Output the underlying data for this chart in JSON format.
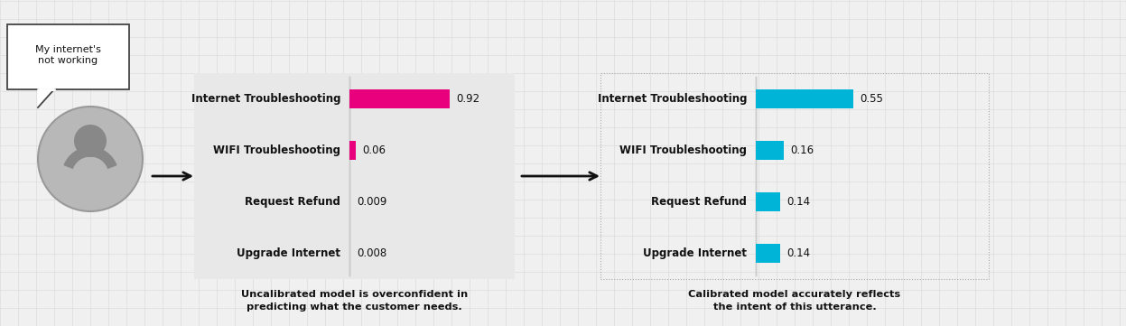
{
  "background_color": "#f0f0f0",
  "grid_color": "#d8d8d8",
  "categories": [
    "Internet Troubleshooting",
    "WIFI Troubleshooting",
    "Request Refund",
    "Upgrade Internet"
  ],
  "uncalibrated_values": [
    0.92,
    0.06,
    0.009,
    0.008
  ],
  "uncalibrated_labels": [
    "0.92",
    "0.06",
    "0.009",
    "0.008"
  ],
  "calibrated_values": [
    0.55,
    0.16,
    0.14,
    0.14
  ],
  "calibrated_labels": [
    "0.55",
    "0.16",
    "0.14",
    "0.14"
  ],
  "uncalibrated_color": "#E8007D",
  "calibrated_color": "#00B4D8",
  "speech_bubble_text": "My internet's\nnot working",
  "uncalibrated_caption": "Uncalibrated model is overconfident in\npredicting what the customer needs.",
  "calibrated_caption": "Calibrated model accurately reflects\nthe intent of this utterance.",
  "left_panel_bg": "#e8e8e8",
  "figw": 12.47,
  "figh": 3.61
}
